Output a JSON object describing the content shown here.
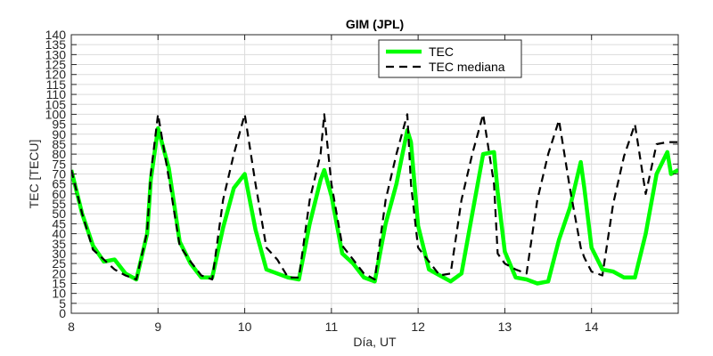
{
  "chart_data": {
    "type": "line",
    "title": "GIM (JPL)",
    "xlabel": "Día, UT",
    "ylabel": "TEC [TECU]",
    "xlim": [
      8,
      15
    ],
    "ylim": [
      0,
      140
    ],
    "xticks": [
      8,
      9,
      10,
      11,
      12,
      13,
      14
    ],
    "yticks": [
      0,
      5,
      10,
      15,
      20,
      25,
      30,
      35,
      40,
      45,
      50,
      55,
      60,
      65,
      70,
      75,
      80,
      85,
      90,
      95,
      100,
      105,
      110,
      115,
      120,
      125,
      130,
      135,
      140
    ],
    "grid": true,
    "legend_position": "top-right",
    "x": [
      8.0,
      8.125,
      8.25,
      8.375,
      8.5,
      8.625,
      8.75,
      8.875,
      8.917,
      9.0,
      9.125,
      9.25,
      9.375,
      9.5,
      9.625,
      9.75,
      9.875,
      10.0,
      10.125,
      10.25,
      10.375,
      10.5,
      10.625,
      10.75,
      10.875,
      10.917,
      11.0,
      11.125,
      11.25,
      11.375,
      11.5,
      11.625,
      11.75,
      11.875,
      11.917,
      12.0,
      12.125,
      12.25,
      12.375,
      12.5,
      12.625,
      12.75,
      12.875,
      12.917,
      13.0,
      13.125,
      13.25,
      13.375,
      13.5,
      13.625,
      13.75,
      13.875,
      13.917,
      14.0,
      14.125,
      14.25,
      14.375,
      14.5,
      14.625,
      14.75,
      14.875,
      14.917,
      15.0
    ],
    "series": [
      {
        "name": "TEC",
        "color": "#00ff00",
        "style": "solid",
        "values": [
          72,
          50,
          34,
          26,
          27,
          20,
          17,
          40,
          67,
          93,
          73,
          36,
          25,
          18,
          18,
          43,
          63,
          70,
          42,
          22,
          20,
          18,
          17,
          45,
          67,
          72,
          59,
          30,
          25,
          18,
          16,
          45,
          65,
          92,
          86,
          44,
          22,
          19,
          16,
          20,
          50,
          80,
          81,
          61,
          31,
          18,
          17,
          15,
          16,
          37,
          53,
          76,
          63,
          33,
          22,
          21,
          18,
          18,
          40,
          70,
          81,
          70,
          72
        ]
      },
      {
        "name": "TEC mediana",
        "color": "#000000",
        "style": "dashed",
        "values": [
          72,
          50,
          32,
          27,
          22,
          19,
          17,
          41,
          70,
          100,
          68,
          34,
          26,
          19,
          17,
          57,
          80,
          100,
          65,
          33,
          27,
          18,
          18,
          57,
          80,
          100,
          65,
          34,
          27,
          20,
          17,
          57,
          80,
          100,
          65,
          33,
          26,
          19,
          20,
          57,
          80,
          100,
          65,
          30,
          25,
          22,
          20,
          57,
          80,
          97,
          63,
          33,
          28,
          21,
          19,
          55,
          79,
          95,
          60,
          85,
          86,
          86,
          86
        ]
      }
    ]
  }
}
